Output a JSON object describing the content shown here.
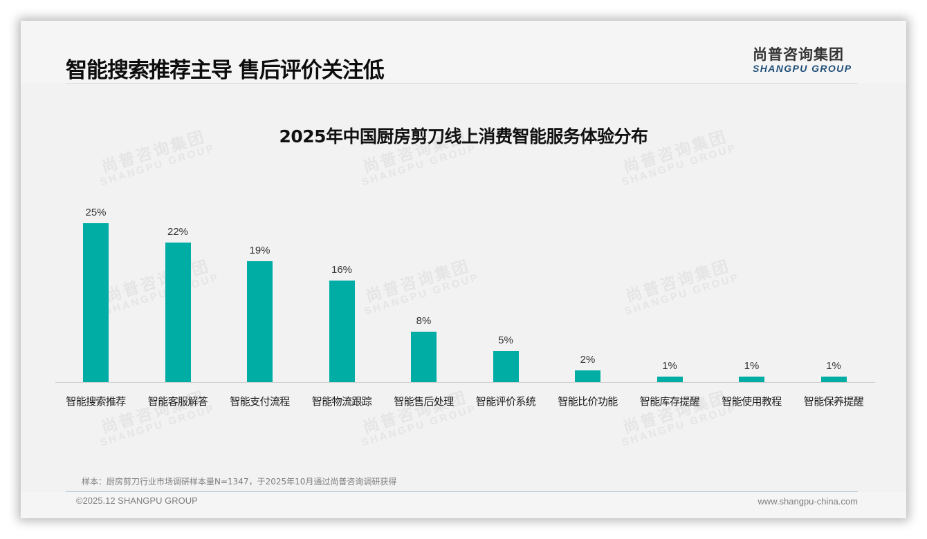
{
  "header": {
    "title": "智能搜索推荐主导 售后评价关注低",
    "logo_cn": "尚普咨询集团",
    "logo_en": "SHANGPU GROUP"
  },
  "watermark": {
    "cn": "尚普咨询集团",
    "en": "SHANGPU GROUP"
  },
  "chart_data": {
    "type": "bar",
    "title": "2025年中国厨房剪刀线上消费智能服务体验分布",
    "xlabel": "",
    "ylabel": "",
    "ylim": [
      0,
      30
    ],
    "grid": false,
    "legend": null,
    "categories": [
      "智能搜索推荐",
      "智能客服解答",
      "智能支付流程",
      "智能物流跟踪",
      "智能售后处理",
      "智能评价系统",
      "智能比价功能",
      "智能库存提醒",
      "智能使用教程",
      "智能保养提醒"
    ],
    "values": [
      25,
      22,
      19,
      16,
      8,
      5,
      2,
      1,
      1,
      1
    ],
    "value_labels": [
      "25%",
      "22%",
      "19%",
      "16%",
      "8%",
      "5%",
      "2%",
      "1%",
      "1%",
      "1%"
    ],
    "unit": "%",
    "bar_color": "#00ada5"
  },
  "footer": {
    "note": "样本：厨房剪刀行业市场调研样本量N=1347，于2025年10月通过尚普咨询调研获得",
    "copyright": "©2025.12 SHANGPU GROUP",
    "website": "www.shangpu-china.com"
  }
}
